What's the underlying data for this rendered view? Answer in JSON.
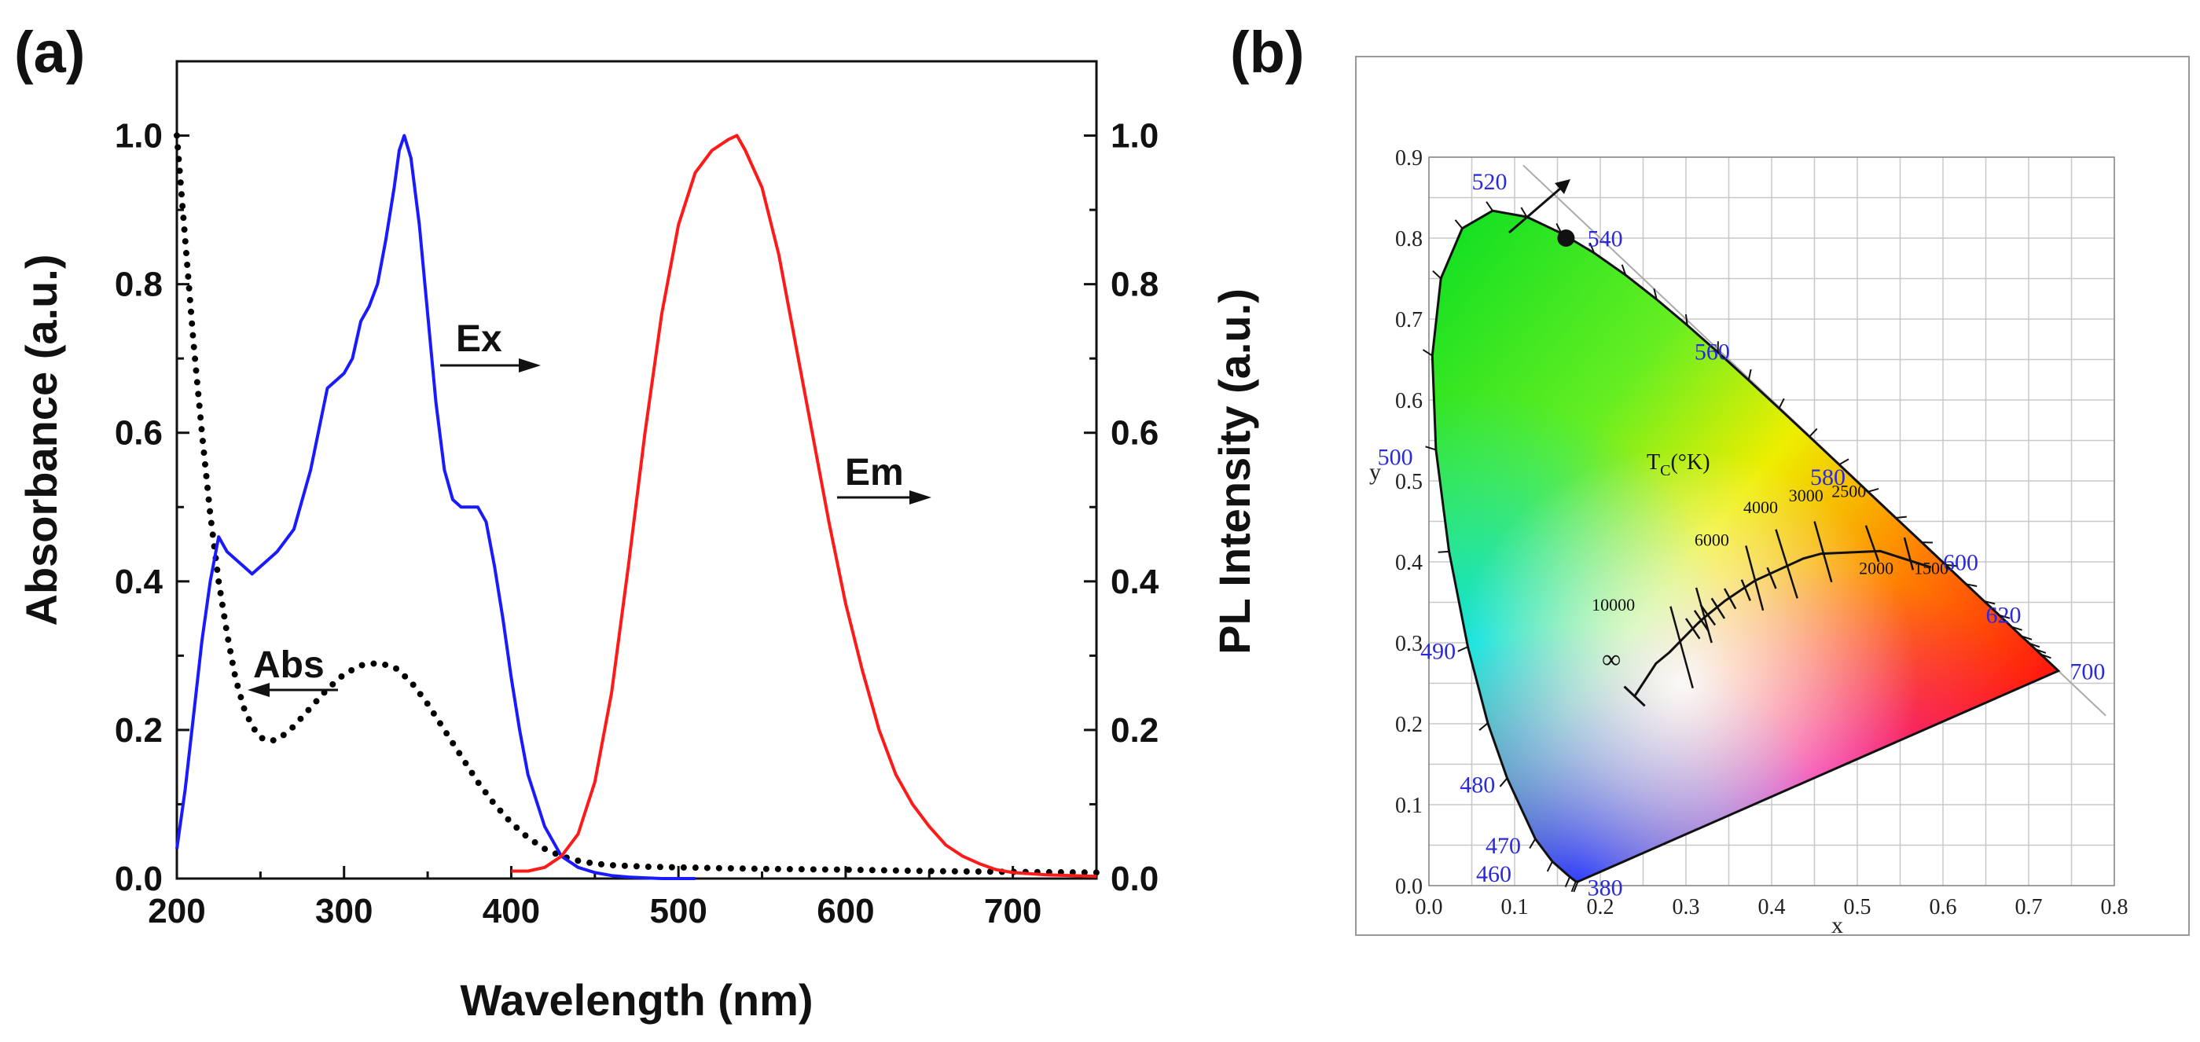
{
  "panels": {
    "a": {
      "label": "(a)"
    },
    "b": {
      "label": "(b)"
    }
  },
  "chart_data": [
    {
      "type": "line",
      "panel": "(a)",
      "title": "",
      "xlabel": "Wavelength (nm)",
      "ylabel_left": "Absorbance (a.u.)",
      "ylabel_right": "PL Intensity (a.u.)",
      "xlim": [
        200,
        750
      ],
      "ylim_left": [
        0,
        1.1
      ],
      "ylim_right": [
        0,
        1.1
      ],
      "xticks": [
        200,
        300,
        400,
        500,
        600,
        700
      ],
      "xtick_labels": [
        "200",
        "300",
        "400",
        "500",
        "600",
        "700"
      ],
      "yticks": [
        0,
        0.2,
        0.4,
        0.6,
        0.8,
        1.0
      ],
      "ytick_labels": [
        "0.0",
        "0.2",
        "0.4",
        "0.6",
        "0.8",
        "1.0"
      ],
      "series": [
        {
          "name": "Abs",
          "color": "#000000",
          "style": "dotted",
          "axis": "left",
          "x": [
            200,
            205,
            210,
            215,
            220,
            225,
            230,
            235,
            240,
            245,
            250,
            255,
            260,
            265,
            270,
            280,
            290,
            300,
            310,
            320,
            330,
            340,
            350,
            360,
            370,
            380,
            390,
            400,
            410,
            420,
            430,
            440,
            450,
            460,
            480,
            500,
            550,
            600,
            650,
            700,
            750
          ],
          "y": [
            1.0,
            0.86,
            0.72,
            0.6,
            0.49,
            0.4,
            0.33,
            0.27,
            0.23,
            0.205,
            0.19,
            0.185,
            0.187,
            0.195,
            0.205,
            0.23,
            0.255,
            0.275,
            0.287,
            0.29,
            0.285,
            0.265,
            0.235,
            0.2,
            0.165,
            0.13,
            0.1,
            0.075,
            0.055,
            0.04,
            0.03,
            0.024,
            0.02,
            0.018,
            0.016,
            0.015,
            0.013,
            0.012,
            0.01,
            0.009,
            0.008
          ]
        },
        {
          "name": "Ex",
          "color": "#1a1aff",
          "style": "solid",
          "axis": "right",
          "x": [
            200,
            205,
            210,
            215,
            220,
            225,
            230,
            235,
            240,
            245,
            250,
            255,
            260,
            270,
            280,
            290,
            300,
            305,
            310,
            315,
            320,
            325,
            330,
            333,
            336,
            340,
            345,
            350,
            355,
            360,
            365,
            370,
            375,
            380,
            385,
            390,
            395,
            400,
            405,
            410,
            420,
            430,
            440,
            450,
            460,
            470,
            480,
            490,
            500,
            510
          ],
          "y": [
            0.04,
            0.12,
            0.22,
            0.32,
            0.4,
            0.46,
            0.44,
            0.43,
            0.42,
            0.41,
            0.42,
            0.43,
            0.44,
            0.47,
            0.55,
            0.66,
            0.68,
            0.7,
            0.75,
            0.77,
            0.8,
            0.86,
            0.93,
            0.98,
            1.0,
            0.97,
            0.88,
            0.76,
            0.64,
            0.55,
            0.51,
            0.5,
            0.5,
            0.5,
            0.48,
            0.42,
            0.35,
            0.27,
            0.2,
            0.14,
            0.07,
            0.03,
            0.015,
            0.008,
            0.004,
            0.002,
            0.001,
            0.0,
            0.0,
            0.0
          ]
        },
        {
          "name": "Em",
          "color": "#ff1a1a",
          "style": "solid",
          "axis": "right",
          "x": [
            400,
            410,
            420,
            430,
            440,
            450,
            460,
            470,
            480,
            490,
            500,
            510,
            520,
            530,
            535,
            540,
            550,
            560,
            570,
            580,
            590,
            600,
            610,
            620,
            630,
            640,
            650,
            660,
            670,
            680,
            690,
            700,
            720,
            750
          ],
          "y": [
            0.01,
            0.01,
            0.015,
            0.03,
            0.06,
            0.13,
            0.25,
            0.42,
            0.6,
            0.76,
            0.88,
            0.95,
            0.98,
            0.995,
            1.0,
            0.98,
            0.93,
            0.84,
            0.72,
            0.6,
            0.48,
            0.37,
            0.28,
            0.2,
            0.14,
            0.1,
            0.07,
            0.045,
            0.03,
            0.02,
            0.012,
            0.008,
            0.005,
            0.003
          ]
        }
      ],
      "annotations": [
        {
          "text": "Ex",
          "direction": "right"
        },
        {
          "text": "Em",
          "direction": "right"
        },
        {
          "text": "Abs",
          "direction": "left"
        }
      ]
    },
    {
      "type": "scatter",
      "panel": "(b)",
      "title": "",
      "xlabel": "x",
      "ylabel": "y",
      "xlim": [
        0,
        0.8
      ],
      "ylim": [
        0,
        0.9
      ],
      "xticks": [
        0.0,
        0.1,
        0.2,
        0.3,
        0.4,
        0.5,
        0.6,
        0.7,
        0.8
      ],
      "xtick_labels": [
        "0.0",
        "0.1",
        "0.2",
        "0.3",
        "0.4",
        "0.5",
        "0.6",
        "0.7",
        "0.8"
      ],
      "yticks": [
        0.0,
        0.1,
        0.2,
        0.3,
        0.4,
        0.5,
        0.6,
        0.7,
        0.8,
        0.9
      ],
      "ytick_labels": [
        "0.0",
        "0.1",
        "0.2",
        "0.3",
        "0.4",
        "0.5",
        "0.6",
        "0.7",
        "0.8",
        "0.9"
      ],
      "grid": true,
      "locus": {
        "x": [
          0.1741,
          0.1738,
          0.1714,
          0.1644,
          0.144,
          0.1241,
          0.0913,
          0.0687,
          0.0454,
          0.0235,
          0.0082,
          0.0039,
          0.0139,
          0.0389,
          0.0743,
          0.1142,
          0.1547,
          0.1929,
          0.2296,
          0.2658,
          0.3016,
          0.3373,
          0.3731,
          0.4087,
          0.4441,
          0.4788,
          0.5125,
          0.5448,
          0.5752,
          0.6029,
          0.627,
          0.6482,
          0.6658,
          0.6801,
          0.6915,
          0.7006,
          0.7079,
          0.714,
          0.7347
        ],
        "y": [
          0.005,
          0.0049,
          0.0051,
          0.0109,
          0.0297,
          0.0578,
          0.1327,
          0.2007,
          0.295,
          0.4127,
          0.5384,
          0.6548,
          0.7502,
          0.812,
          0.8338,
          0.8262,
          0.8059,
          0.7816,
          0.7543,
          0.7243,
          0.6923,
          0.6589,
          0.6245,
          0.5896,
          0.5547,
          0.5202,
          0.4866,
          0.4544,
          0.4242,
          0.3965,
          0.3725,
          0.3514,
          0.334,
          0.3197,
          0.3083,
          0.2993,
          0.292,
          0.2859,
          0.2653
        ]
      },
      "wavelength_labels": [
        "380",
        "460",
        "470",
        "480",
        "490",
        "500",
        "520",
        "540",
        "560",
        "580",
        "600",
        "620",
        "700"
      ],
      "planckian_locus": {
        "x": [
          0.24,
          0.265,
          0.2807,
          0.3135,
          0.3221,
          0.3451,
          0.3805,
          0.4369,
          0.4578,
          0.5267,
          0.586
        ],
        "y": [
          0.234,
          0.2744,
          0.2883,
          0.3236,
          0.3318,
          0.3516,
          0.3768,
          0.4041,
          0.4101,
          0.4133,
          0.3932
        ]
      },
      "tc_label": "T",
      "tc_sub": "C",
      "tc_unit": "(°K)",
      "cct_labels": [
        "10000",
        "6000",
        "4000",
        "3000",
        "2500",
        "2000",
        "1500"
      ],
      "infinity_label": "∞",
      "point": {
        "x": 0.16,
        "y": 0.8
      }
    }
  ]
}
